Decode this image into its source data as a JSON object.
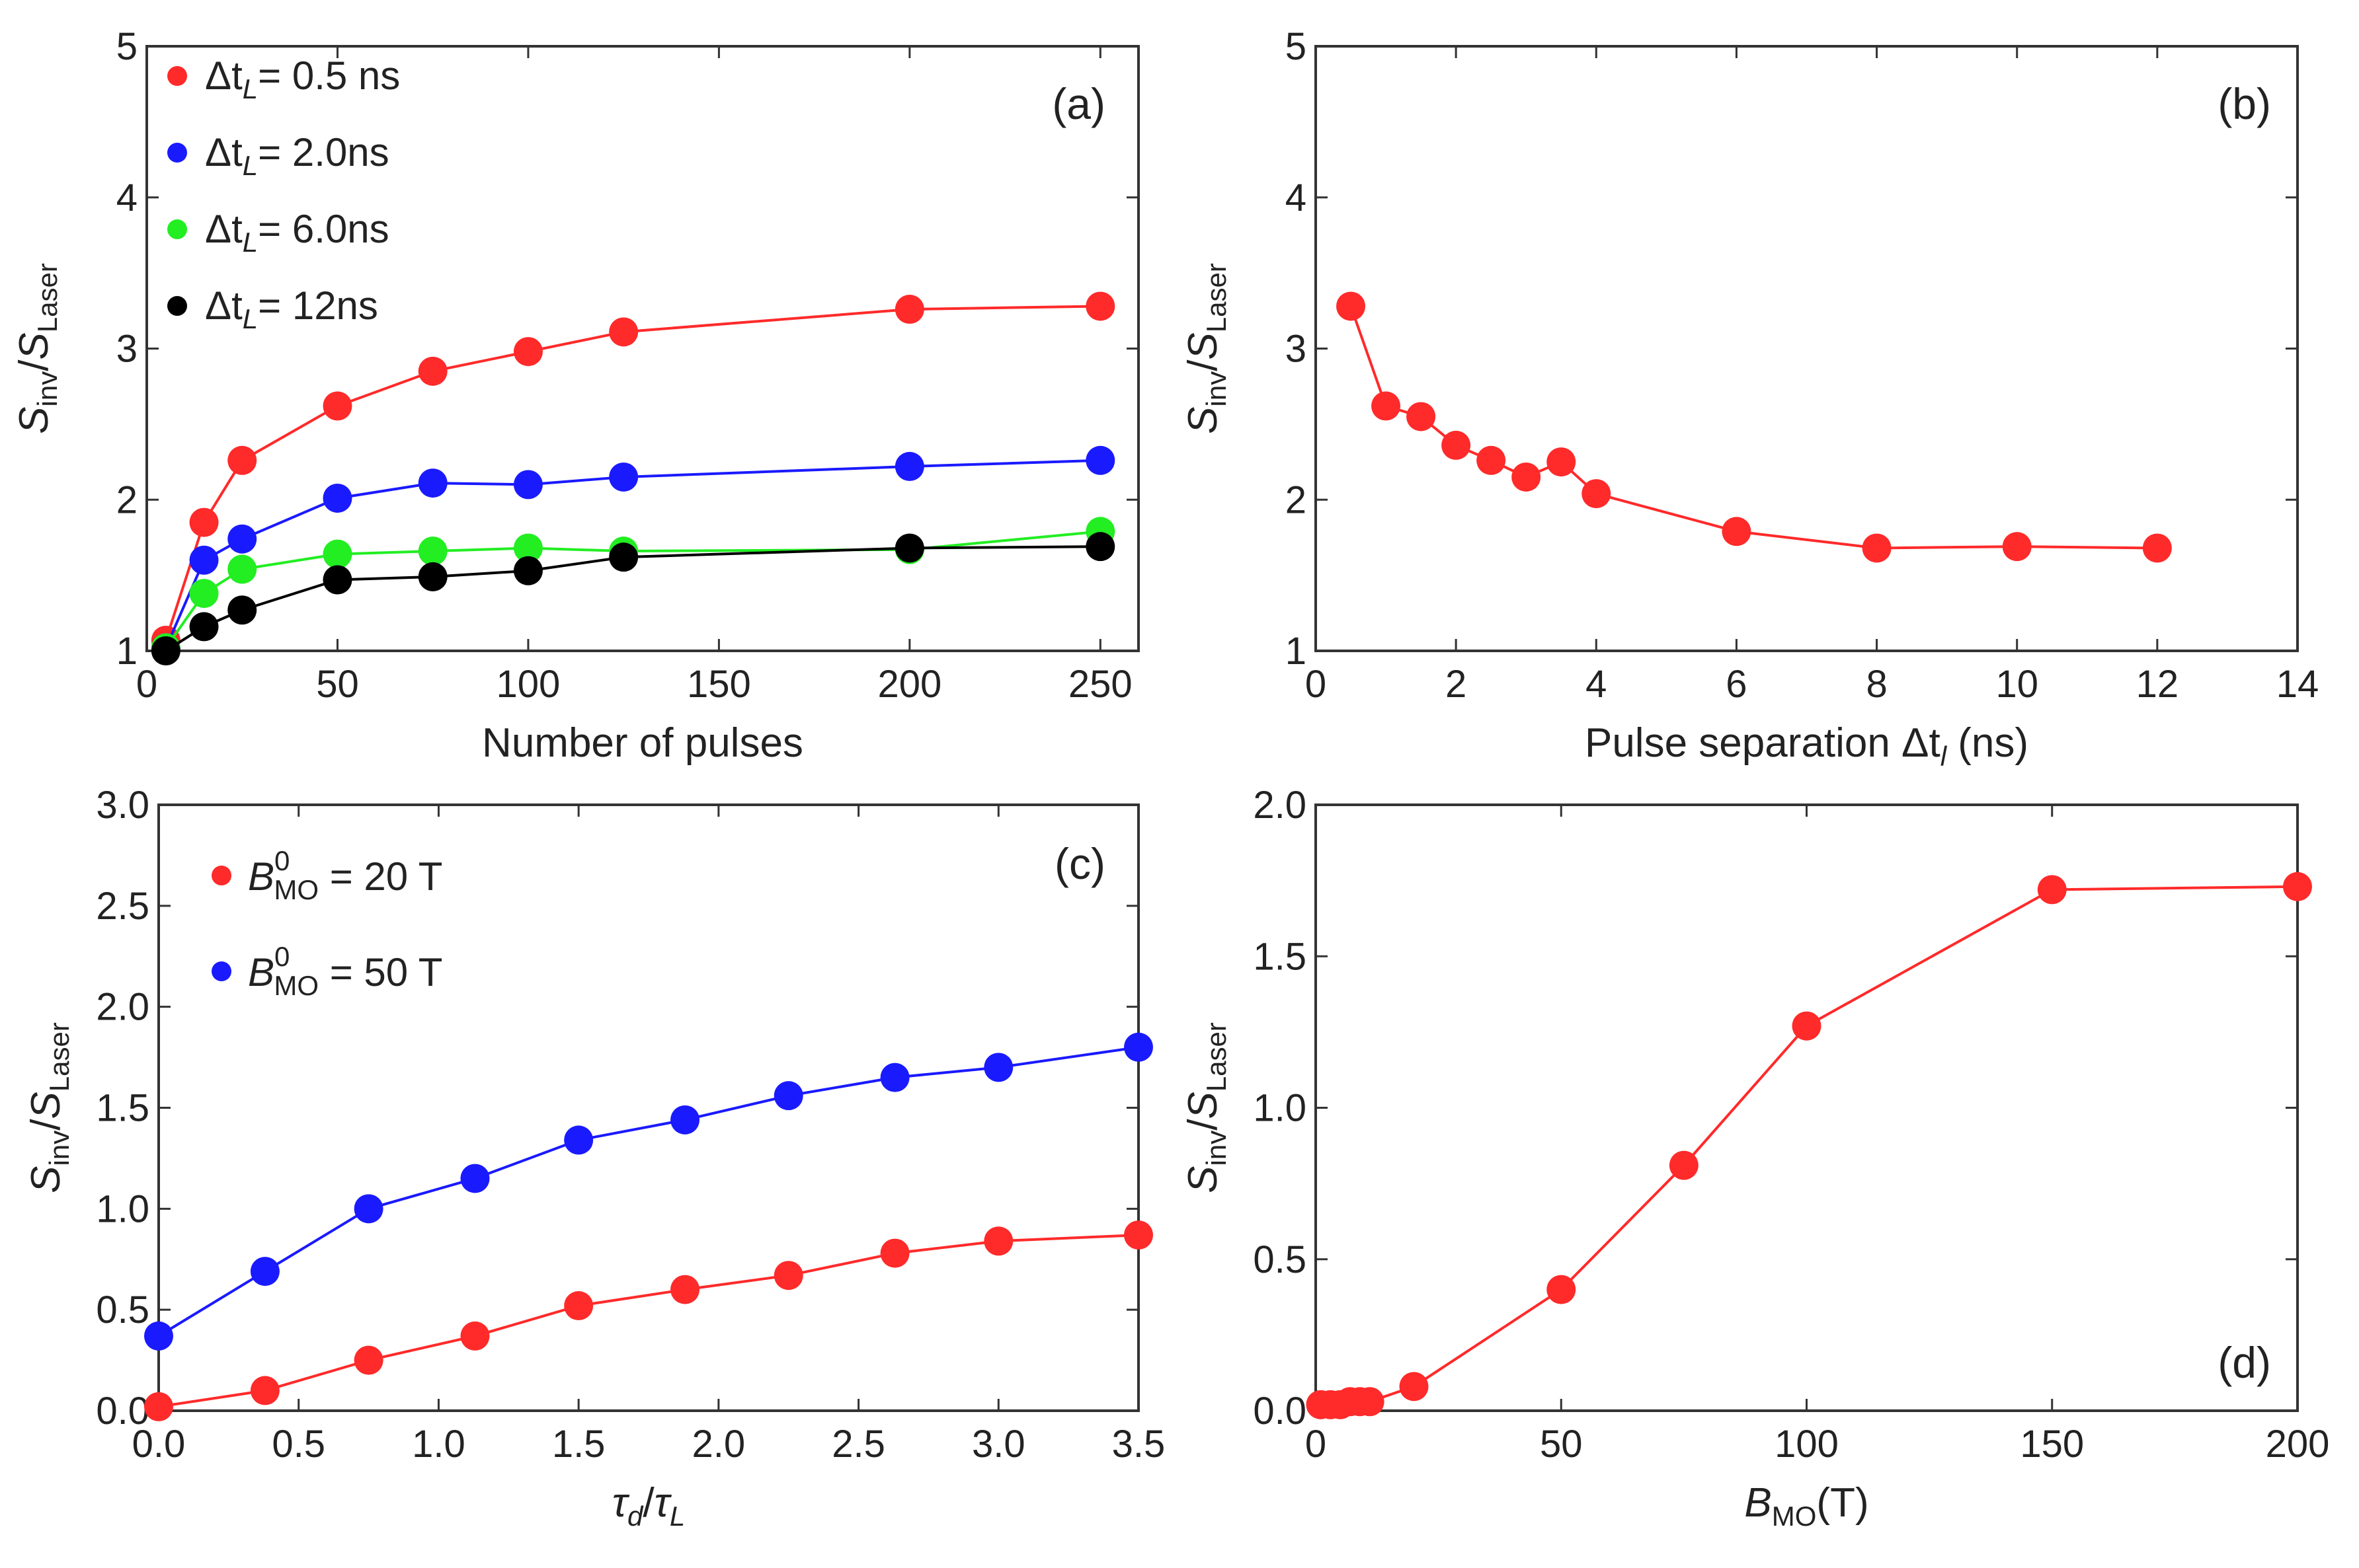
{
  "chart_data": [
    {
      "id": "a",
      "type": "line",
      "panel_label": "(a)",
      "xlabel": "Number of pulses",
      "ylabel": "S_inv/S_Laser",
      "xlim": [
        0,
        260
      ],
      "ylim": [
        1,
        5
      ],
      "xticks": [
        0,
        50,
        100,
        150,
        200,
        250
      ],
      "yticks": [
        1,
        2,
        3,
        4,
        5
      ],
      "legend_position": "top-left",
      "series": [
        {
          "name": "Δt_L= 0.5 ns",
          "legend_main": "Δt",
          "legend_sub": "L",
          "legend_rest": "= 0.5 ns",
          "color": "#ff2a2a",
          "x": [
            5,
            15,
            25,
            50,
            75,
            100,
            125,
            200,
            250
          ],
          "y": [
            1.07,
            1.85,
            2.26,
            2.62,
            2.85,
            2.98,
            3.11,
            3.26,
            3.28
          ]
        },
        {
          "name": "Δt_L= 2.0ns",
          "legend_main": "Δt",
          "legend_sub": "L",
          "legend_rest": "= 2.0ns",
          "color": "#1a1aff",
          "x": [
            5,
            15,
            25,
            50,
            75,
            100,
            125,
            200,
            250
          ],
          "y": [
            1.02,
            1.6,
            1.74,
            2.01,
            2.11,
            2.1,
            2.15,
            2.22,
            2.26
          ]
        },
        {
          "name": "Δt_L= 6.0ns",
          "legend_main": "Δt",
          "legend_sub": "L",
          "legend_rest": "= 6.0ns",
          "color": "#22ee22",
          "x": [
            5,
            15,
            25,
            50,
            75,
            100,
            125,
            200,
            250
          ],
          "y": [
            1.02,
            1.38,
            1.54,
            1.64,
            1.66,
            1.68,
            1.66,
            1.67,
            1.79
          ]
        },
        {
          "name": "Δt_L= 12ns",
          "legend_main": "Δt",
          "legend_sub": "L",
          "legend_rest": "= 12ns",
          "color": "#000000",
          "x": [
            5,
            15,
            25,
            50,
            75,
            100,
            125,
            200,
            250
          ],
          "y": [
            1.0,
            1.16,
            1.27,
            1.47,
            1.49,
            1.53,
            1.62,
            1.68,
            1.69
          ]
        }
      ]
    },
    {
      "id": "b",
      "type": "line",
      "panel_label": "(b)",
      "xlabel": "Pulse separation Δt_l (ns)",
      "xlabel_main": "Pulse separation Δt",
      "xlabel_sub": "l",
      "xlabel_rest": "  (ns)",
      "ylabel": "S_inv/S_Laser",
      "xlim": [
        0,
        14
      ],
      "ylim": [
        1,
        5
      ],
      "xticks": [
        0,
        2,
        4,
        6,
        8,
        10,
        12,
        14
      ],
      "yticks": [
        1,
        2,
        3,
        4,
        5
      ],
      "series": [
        {
          "color": "#ff2a2a",
          "x": [
            0.5,
            1.0,
            1.5,
            2.0,
            2.5,
            3.0,
            3.5,
            4.0,
            6.0,
            8.0,
            10.0,
            12.0
          ],
          "y": [
            3.28,
            2.62,
            2.55,
            2.36,
            2.26,
            2.15,
            2.25,
            2.04,
            1.79,
            1.68,
            1.69,
            1.68
          ]
        }
      ]
    },
    {
      "id": "c",
      "type": "line",
      "panel_label": "(c)",
      "xlabel": "τ_d/τ_L",
      "ylabel": "S_inv/S_Laser",
      "xlim": [
        0,
        3.5
      ],
      "ylim": [
        0,
        3
      ],
      "xticks": [
        0,
        0.5,
        1,
        1.5,
        2,
        2.5,
        3,
        3.5
      ],
      "xtick_labels": [
        "0.0",
        "0.5",
        "1.0",
        "1.5",
        "2.0",
        "2.5",
        "3.0",
        "3.5"
      ],
      "yticks": [
        0,
        0.5,
        1,
        1.5,
        2,
        2.5,
        3
      ],
      "ytick_labels": [
        "0.0",
        "0.5",
        "1.0",
        "1.5",
        "2.0",
        "2.5",
        "3.0"
      ],
      "legend_position": "top-left",
      "series": [
        {
          "name": "B_MO^0 = 20 T",
          "legend_value": "= 20 T",
          "color": "#ff2a2a",
          "x": [
            0,
            0.38,
            0.75,
            1.13,
            1.5,
            1.88,
            2.25,
            2.63,
            3.0,
            3.5
          ],
          "y": [
            0.02,
            0.1,
            0.25,
            0.37,
            0.52,
            0.6,
            0.67,
            0.78,
            0.84,
            0.87
          ]
        },
        {
          "name": "B_MO^0 = 50 T",
          "legend_value": "= 50 T",
          "color": "#1a1aff",
          "x": [
            0,
            0.38,
            0.75,
            1.13,
            1.5,
            1.88,
            2.25,
            2.63,
            3.0,
            3.5
          ],
          "y": [
            0.37,
            0.69,
            1.0,
            1.15,
            1.34,
            1.44,
            1.56,
            1.65,
            1.7,
            1.8
          ]
        }
      ]
    },
    {
      "id": "d",
      "type": "line",
      "panel_label": "(d)",
      "xlabel": "B_MO(T)",
      "ylabel": "S_inv/S_Laser",
      "xlim": [
        0,
        200
      ],
      "ylim": [
        0,
        2
      ],
      "xticks": [
        0,
        50,
        100,
        150,
        200
      ],
      "yticks": [
        0,
        0.5,
        1,
        1.5,
        2
      ],
      "ytick_labels": [
        "0.0",
        "0.5",
        "1.0",
        "1.5",
        "2.0"
      ],
      "series": [
        {
          "color": "#ff2a2a",
          "x": [
            1,
            3,
            5,
            7,
            9,
            11,
            20,
            50,
            75,
            100,
            150,
            200
          ],
          "y": [
            0.02,
            0.02,
            0.02,
            0.03,
            0.03,
            0.03,
            0.08,
            0.4,
            0.81,
            1.27,
            1.72,
            1.73
          ]
        }
      ]
    }
  ]
}
